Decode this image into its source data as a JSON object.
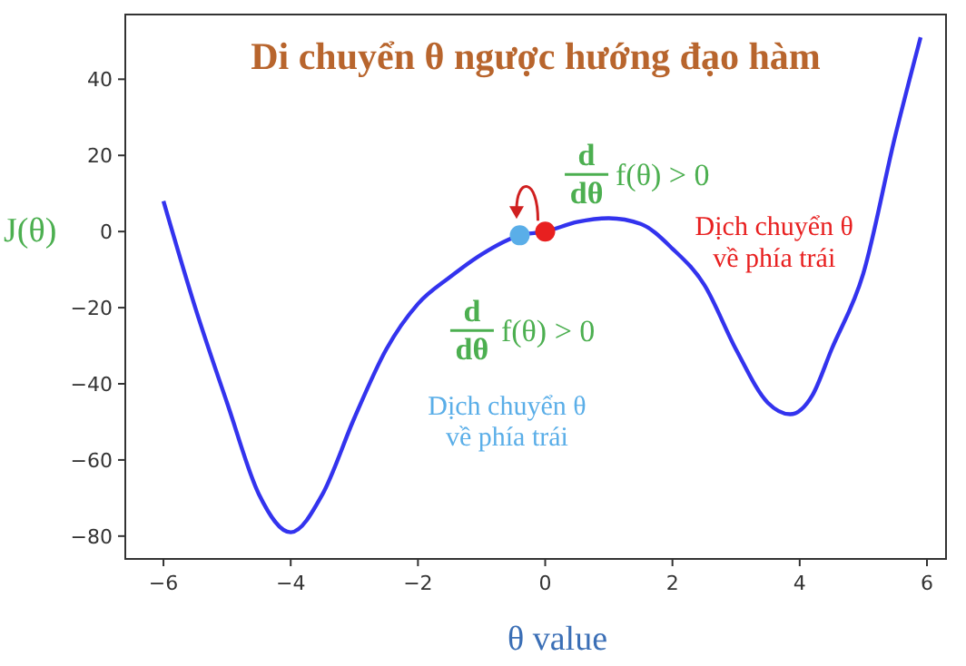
{
  "chart_data": {
    "type": "line",
    "title": "Di chuyển θ ngược hướng đạo hàm",
    "xlabel": "θ value",
    "ylabel": "J(θ)",
    "xlim": [
      -6.6,
      6.3
    ],
    "ylim": [
      -86,
      57
    ],
    "xticks": [
      -6,
      -4,
      -2,
      0,
      2,
      4,
      6
    ],
    "yticks": [
      -80,
      -60,
      -40,
      -20,
      0,
      20,
      40
    ],
    "grid": false,
    "series": [
      {
        "color": "#3333ee",
        "marker": "none",
        "x": [
          -6,
          -5.5,
          -5,
          -4.5,
          -4,
          -3.5,
          -3,
          -2.5,
          -2,
          -1.5,
          -1,
          -0.4,
          0,
          0.5,
          1,
          1.5,
          2,
          2.5,
          3,
          3.5,
          3.85,
          4.2,
          4.5,
          5,
          5.5,
          5.9
        ],
        "values": [
          8,
          -20,
          -45,
          -69,
          -79,
          -69,
          -49,
          -31,
          -19,
          -12,
          -6,
          -1,
          0,
          2.5,
          3.5,
          2,
          -4.5,
          -14,
          -31,
          -45,
          -48,
          -43,
          -31,
          -11,
          25,
          51
        ]
      },
      {
        "type": "scatter",
        "marker": "circle",
        "colors": [
          "#5aaee8",
          "#e82020"
        ],
        "x": [
          -0.4,
          0
        ],
        "values": [
          -1,
          0
        ]
      }
    ],
    "annotations": [
      "d\ndθ f(θ) > 0",
      "Dịch chuyển θ\nvề phía trái",
      "d\ndθ f(θ) > 0",
      "Dịch chuyển θ\nvề phía trái"
    ]
  }
}
